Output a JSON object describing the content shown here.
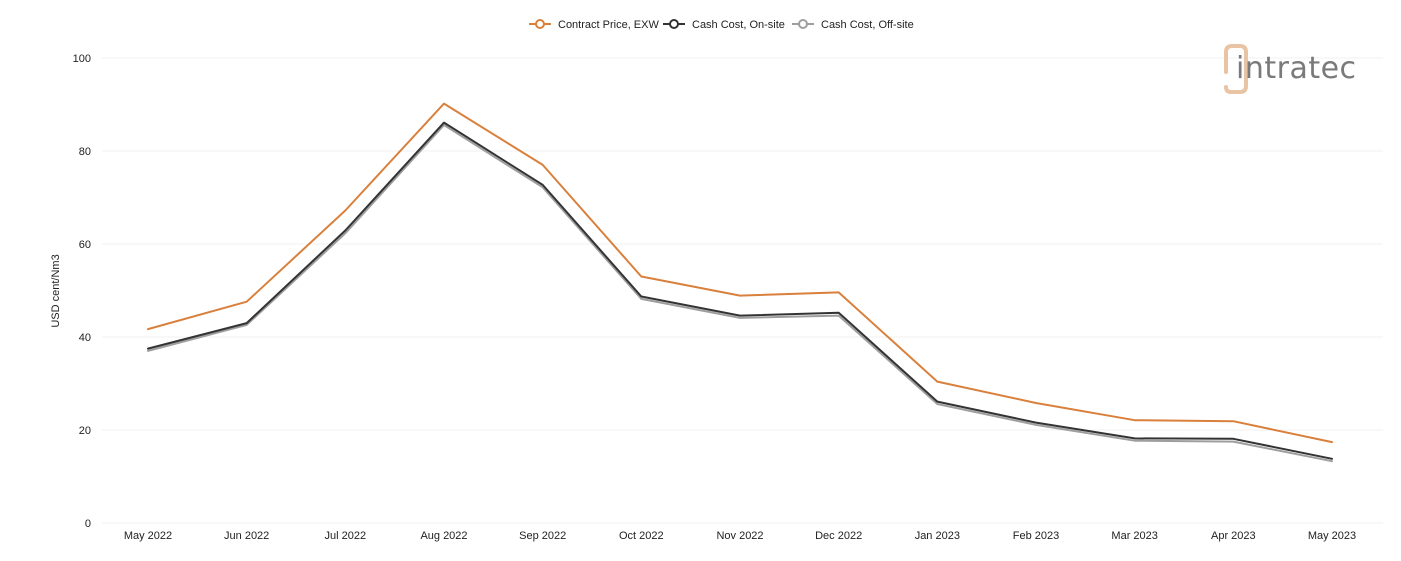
{
  "chart_data": {
    "type": "line",
    "title": "",
    "xlabel": "",
    "ylabel": "USD cent/Nm3",
    "ylim": [
      0,
      100
    ],
    "yticks": [
      0,
      20,
      40,
      60,
      80,
      100
    ],
    "grid": true,
    "legend_position": "top-center",
    "categories": [
      "May 2022",
      "Jun 2022",
      "Jul 2022",
      "Aug 2022",
      "Sep 2022",
      "Oct 2022",
      "Nov 2022",
      "Dec 2022",
      "Jan 2023",
      "Feb 2023",
      "Mar 2023",
      "Apr 2023",
      "May 2023"
    ],
    "series": [
      {
        "name": "Contract Price, EXW",
        "color": "#d9803c",
        "values": [
          41.7,
          47.6,
          67.2,
          90.2,
          77.0,
          53.0,
          48.9,
          49.6,
          30.4,
          25.8,
          22.1,
          21.9,
          17.4
        ]
      },
      {
        "name": "Cash Cost, On-site",
        "color": "#333333",
        "values": [
          37.5,
          43.0,
          62.9,
          86.1,
          72.7,
          48.7,
          44.6,
          45.2,
          26.1,
          21.6,
          18.2,
          18.1,
          13.8
        ]
      },
      {
        "name": "Cash Cost, Off-site",
        "color": "#9e9e9e",
        "values": [
          37.0,
          42.6,
          62.3,
          85.6,
          72.2,
          48.2,
          44.1,
          44.6,
          25.6,
          21.1,
          17.7,
          17.5,
          13.3
        ]
      }
    ]
  },
  "logo": {
    "text": "intratec",
    "mark_color": "#e9c4a4",
    "text_color": "#7a7a7a"
  }
}
